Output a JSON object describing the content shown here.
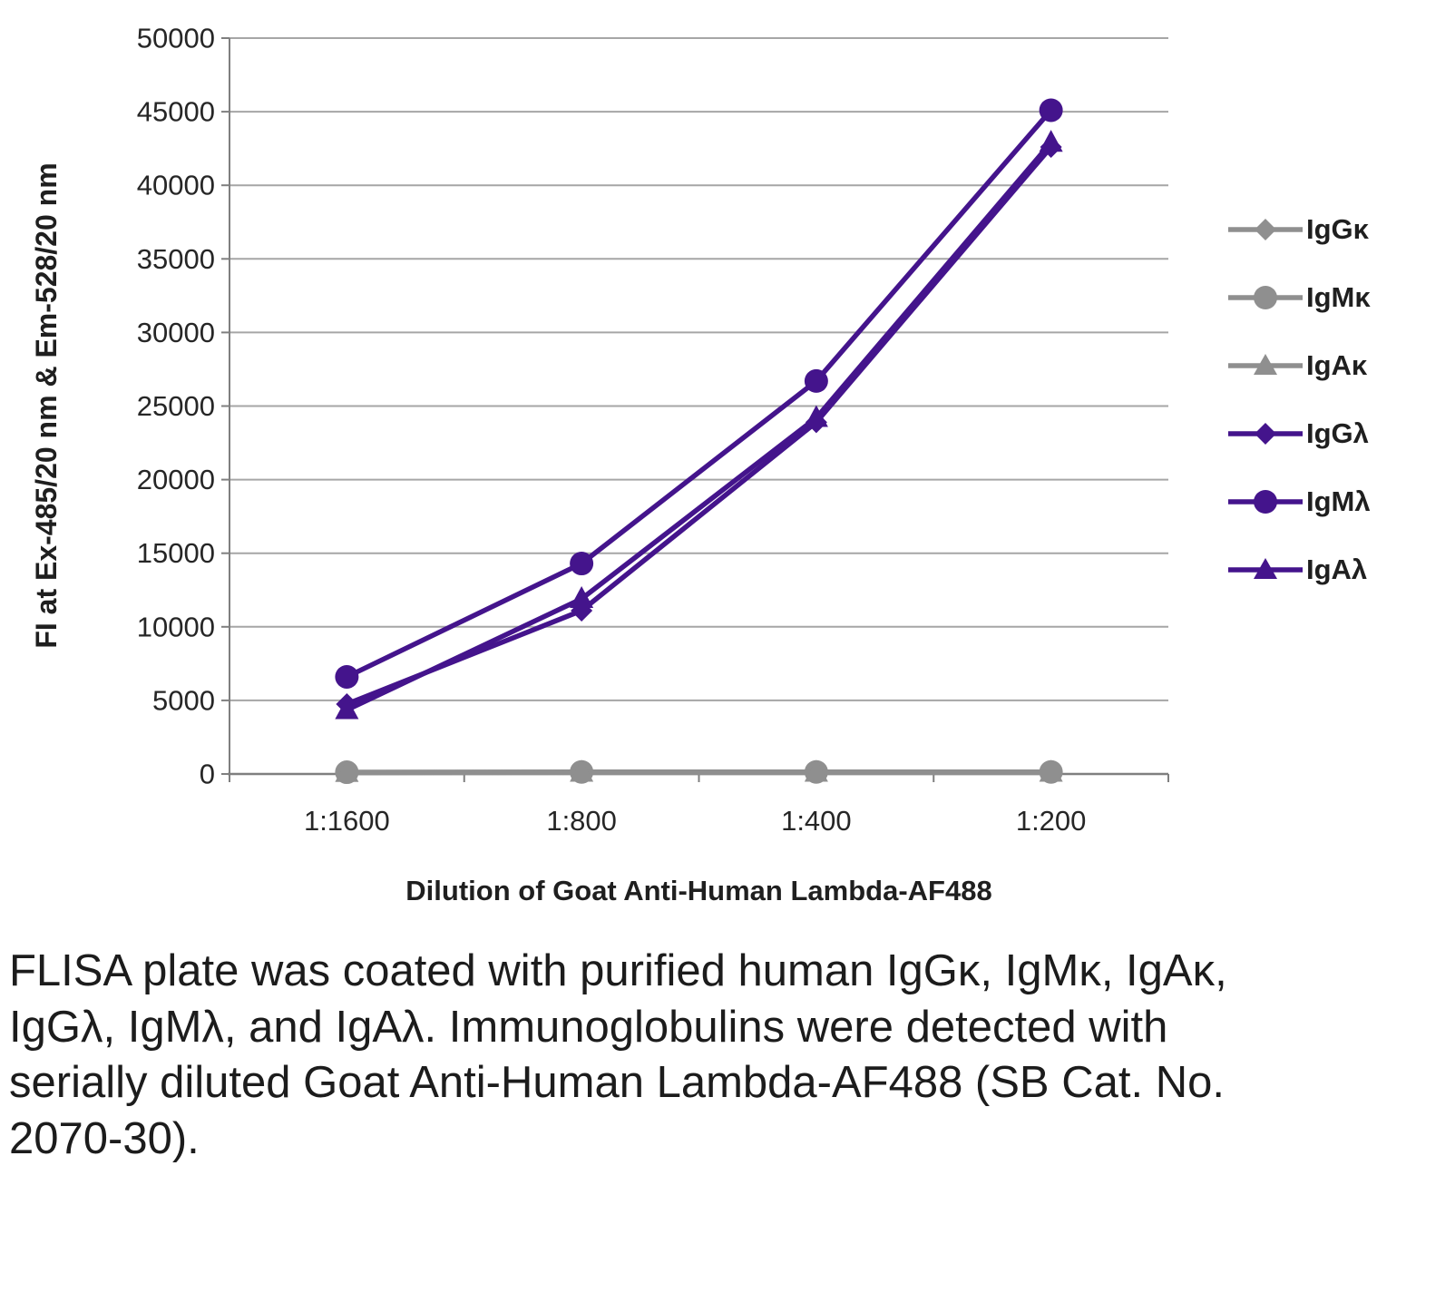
{
  "caption": "FLISA plate was coated with purified human IgGκ, IgMκ, IgAκ, IgGλ, IgMλ, and IgAλ. Immunoglobulins were detected with serially diluted Goat Anti-Human Lambda-AF488 (SB Cat. No. 2070-30).",
  "chart_data": {
    "type": "line",
    "title": "",
    "xlabel": "Dilution of Goat Anti-Human Lambda-AF488",
    "ylabel": "FI at Ex-485/20 nm & Em-528/20 nm",
    "categories": [
      "1:1600",
      "1:800",
      "1:400",
      "1:200"
    ],
    "ylim": [
      0,
      50000
    ],
    "yticks": [
      0,
      5000,
      10000,
      15000,
      20000,
      25000,
      30000,
      35000,
      40000,
      45000,
      50000
    ],
    "grid": true,
    "legend_position": "right",
    "colors": {
      "gray_series": "#8f8f8f",
      "purple_series": "#44148c",
      "gridline": "#a6a6a6",
      "axis": "#7f7f7f",
      "tick_text": "#262626"
    },
    "series": [
      {
        "name": "IgGκ",
        "marker": "diamond",
        "color": "#8f8f8f",
        "values": [
          100,
          100,
          100,
          100
        ]
      },
      {
        "name": "IgMκ",
        "marker": "circle",
        "color": "#8f8f8f",
        "values": [
          120,
          140,
          140,
          140
        ]
      },
      {
        "name": "IgAκ",
        "marker": "triangle",
        "color": "#8f8f8f",
        "values": [
          80,
          100,
          100,
          100
        ]
      },
      {
        "name": "IgGλ",
        "marker": "diamond",
        "color": "#44148c",
        "values": [
          4750,
          11100,
          23900,
          42600
        ]
      },
      {
        "name": "IgMλ",
        "marker": "circle",
        "color": "#44148c",
        "values": [
          6600,
          14300,
          26700,
          45100
        ]
      },
      {
        "name": "IgAλ",
        "marker": "triangle",
        "color": "#44148c",
        "values": [
          4350,
          11900,
          24200,
          42900
        ]
      }
    ]
  }
}
